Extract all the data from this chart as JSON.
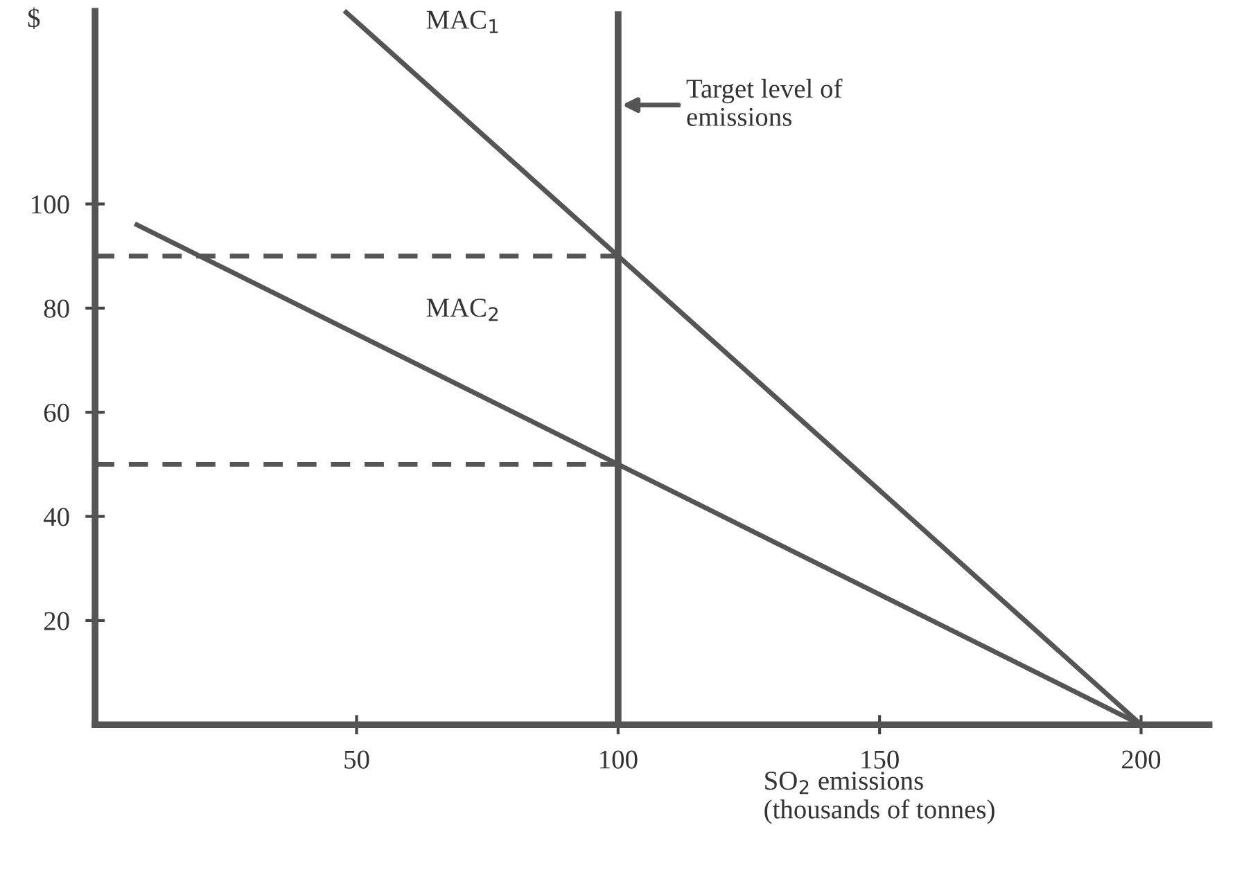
{
  "chart_data": {
    "type": "line",
    "ylabel": "$",
    "xlabel": "SO$_{2}$ emissions\n(thousands of tonnes)",
    "xlim": [
      0,
      213
    ],
    "ylim": [
      0,
      137
    ],
    "xticks": [
      50,
      100,
      150,
      200
    ],
    "yticks": [
      20,
      40,
      60,
      80,
      100
    ],
    "grid": false,
    "legend": false,
    "series": [
      {
        "name": "MAC$_{1}$",
        "color": "#555555",
        "x": [
          48,
          100,
          200
        ],
        "values": [
          136.8,
          90,
          0
        ]
      },
      {
        "name": "MAC$_{2}$",
        "color": "#555555",
        "x": [
          8,
          100,
          200
        ],
        "values": [
          96,
          50,
          0
        ]
      },
      {
        "color": "#555555",
        "x": [
          0,
          100
        ],
        "values": [
          90,
          90
        ],
        "line_style": "dashed"
      },
      {
        "color": "#555555",
        "x": [
          0,
          100
        ],
        "values": [
          50,
          50
        ],
        "line_style": "dashed"
      }
    ],
    "ref_lines": [
      {
        "axis": "x",
        "value": 100,
        "color": "#555555"
      }
    ],
    "annotations": [
      {
        "text": "Target level of\nemissions",
        "x": 100,
        "y": 119
      }
    ]
  }
}
